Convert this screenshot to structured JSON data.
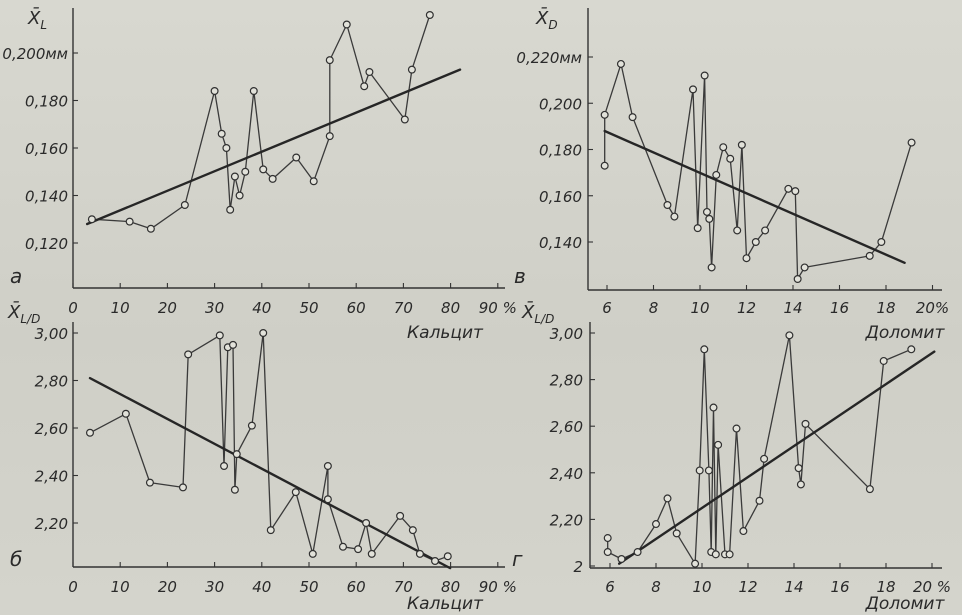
{
  "chart_data": [
    {
      "panel_label": "а",
      "type": "line",
      "xlabel": "Кальцит",
      "ylabel": {
        "symbol": "X̄",
        "subscript": "L"
      },
      "xlim": [
        0,
        90
      ],
      "ylim": [
        0.11,
        0.22
      ],
      "grid": false,
      "x_ticks": [
        {
          "value": 0,
          "label": "0"
        },
        {
          "value": 10,
          "label": "10"
        },
        {
          "value": 20,
          "label": "20"
        },
        {
          "value": 30,
          "label": "30"
        },
        {
          "value": 40,
          "label": "40"
        },
        {
          "value": 50,
          "label": "50"
        },
        {
          "value": 60,
          "label": "60"
        },
        {
          "value": 70,
          "label": "70"
        },
        {
          "value": 80,
          "label": "80"
        },
        {
          "value": 90,
          "label": "90 %"
        }
      ],
      "y_ticks": [
        {
          "value": 0.12,
          "label": "0,120"
        },
        {
          "value": 0.14,
          "label": "0,140"
        },
        {
          "value": 0.16,
          "label": "0,160"
        },
        {
          "value": 0.18,
          "label": "0,180"
        },
        {
          "value": 0.2,
          "label": "0,200мм"
        }
      ],
      "points": [
        [
          4,
          0.13
        ],
        [
          12,
          0.129
        ],
        [
          16.5,
          0.126
        ],
        [
          23.7,
          0.136
        ],
        [
          30,
          0.184
        ],
        [
          31.5,
          0.166
        ],
        [
          32.5,
          0.16
        ],
        [
          33.3,
          0.134
        ],
        [
          34.3,
          0.148
        ],
        [
          35.3,
          0.14
        ],
        [
          36.5,
          0.15
        ],
        [
          38.3,
          0.184
        ],
        [
          40.3,
          0.151
        ],
        [
          42.3,
          0.147
        ],
        [
          47.3,
          0.156
        ],
        [
          51,
          0.146
        ],
        [
          54.4,
          0.165
        ],
        [
          54.4,
          0.197
        ],
        [
          58,
          0.212
        ],
        [
          61.7,
          0.186
        ],
        [
          62.8,
          0.192
        ],
        [
          70.3,
          0.172
        ],
        [
          71.8,
          0.193
        ],
        [
          75.6,
          0.216
        ]
      ],
      "trend_line": [
        [
          3,
          0.128
        ],
        [
          82,
          0.193
        ]
      ]
    },
    {
      "panel_label": "в",
      "type": "line",
      "xlabel": "Доломит",
      "ylabel": {
        "symbol": "X̄",
        "subscript": "D"
      },
      "xlim": [
        5.5,
        20
      ],
      "ylim": [
        0.115,
        0.225
      ],
      "grid": false,
      "x_ticks": [
        {
          "value": 6,
          "label": "6"
        },
        {
          "value": 8,
          "label": "8"
        },
        {
          "value": 10,
          "label": "10"
        },
        {
          "value": 12,
          "label": "12"
        },
        {
          "value": 14,
          "label": "14"
        },
        {
          "value": 16,
          "label": "16"
        },
        {
          "value": 18,
          "label": "18"
        },
        {
          "value": 20,
          "label": "20%"
        }
      ],
      "y_ticks": [
        {
          "value": 0.14,
          "label": "0,140"
        },
        {
          "value": 0.16,
          "label": "0,160"
        },
        {
          "value": 0.18,
          "label": "0,180"
        },
        {
          "value": 0.2,
          "label": "0,200"
        },
        {
          "value": 0.22,
          "label": "0,220мм"
        }
      ],
      "points": [
        [
          5.9,
          0.173
        ],
        [
          5.9,
          0.195
        ],
        [
          6.6,
          0.217
        ],
        [
          7.1,
          0.194
        ],
        [
          8.6,
          0.156
        ],
        [
          8.9,
          0.151
        ],
        [
          9.7,
          0.206
        ],
        [
          9.9,
          0.146
        ],
        [
          10.2,
          0.212
        ],
        [
          10.3,
          0.153
        ],
        [
          10.4,
          0.15
        ],
        [
          10.5,
          0.129
        ],
        [
          10.7,
          0.169
        ],
        [
          11.0,
          0.181
        ],
        [
          11.3,
          0.176
        ],
        [
          11.6,
          0.145
        ],
        [
          11.8,
          0.182
        ],
        [
          12.0,
          0.133
        ],
        [
          12.4,
          0.14
        ],
        [
          12.8,
          0.145
        ],
        [
          13.8,
          0.163
        ],
        [
          14.1,
          0.162
        ],
        [
          14.2,
          0.124
        ],
        [
          14.5,
          0.129
        ],
        [
          17.3,
          0.134
        ],
        [
          17.8,
          0.14
        ],
        [
          19.1,
          0.183
        ]
      ],
      "trend_line": [
        [
          5.9,
          0.188
        ],
        [
          18.8,
          0.131
        ]
      ]
    },
    {
      "panel_label": "б",
      "type": "line",
      "xlabel": "Кальцит",
      "ylabel": {
        "symbol": "X̄",
        "subscript": "L/D"
      },
      "xlim": [
        0,
        90
      ],
      "ylim": [
        2.0,
        3.05
      ],
      "grid": false,
      "x_ticks": [
        {
          "value": 0,
          "label": "0"
        },
        {
          "value": 10,
          "label": "10"
        },
        {
          "value": 20,
          "label": "20"
        },
        {
          "value": 30,
          "label": "30"
        },
        {
          "value": 40,
          "label": "40"
        },
        {
          "value": 50,
          "label": "50"
        },
        {
          "value": 60,
          "label": "60"
        },
        {
          "value": 70,
          "label": "70"
        },
        {
          "value": 80,
          "label": "80"
        },
        {
          "value": 90,
          "label": "90 %"
        }
      ],
      "y_ticks": [
        {
          "value": 2.2,
          "label": "2,20"
        },
        {
          "value": 2.4,
          "label": "2,40"
        },
        {
          "value": 2.6,
          "label": "2,60"
        },
        {
          "value": 2.8,
          "label": "2,80"
        },
        {
          "value": 3.0,
          "label": "3,00"
        }
      ],
      "points": [
        [
          3.6,
          2.58
        ],
        [
          11.2,
          2.66
        ],
        [
          16.3,
          2.37
        ],
        [
          23.3,
          2.35
        ],
        [
          24.4,
          2.91
        ],
        [
          31.1,
          2.99
        ],
        [
          32.0,
          2.44
        ],
        [
          32.8,
          2.94
        ],
        [
          33.9,
          2.95
        ],
        [
          34.3,
          2.34
        ],
        [
          34.7,
          2.49
        ],
        [
          37.9,
          2.61
        ],
        [
          40.3,
          3.0
        ],
        [
          41.9,
          2.17
        ],
        [
          47.2,
          2.33
        ],
        [
          50.8,
          2.07
        ],
        [
          54.0,
          2.44
        ],
        [
          54.0,
          2.3
        ],
        [
          57.2,
          2.1
        ],
        [
          60.4,
          2.09
        ],
        [
          62.1,
          2.2
        ],
        [
          63.3,
          2.07
        ],
        [
          69.3,
          2.23
        ],
        [
          72.0,
          2.17
        ],
        [
          73.5,
          2.07
        ],
        [
          76.7,
          2.04
        ],
        [
          79.4,
          2.06
        ]
      ],
      "trend_line": [
        [
          3.6,
          2.81
        ],
        [
          79.9,
          2.01
        ]
      ]
    },
    {
      "panel_label": "г",
      "type": "line",
      "xlabel": "Доломит",
      "ylabel": {
        "symbol": "X̄",
        "subscript": "L/D"
      },
      "xlim": [
        5.5,
        20
      ],
      "ylim": [
        2.0,
        3.05
      ],
      "grid": false,
      "x_ticks": [
        {
          "value": 6,
          "label": "6"
        },
        {
          "value": 8,
          "label": "8"
        },
        {
          "value": 10,
          "label": "10"
        },
        {
          "value": 12,
          "label": "12"
        },
        {
          "value": 14,
          "label": "14"
        },
        {
          "value": 16,
          "label": "16"
        },
        {
          "value": 18,
          "label": "18"
        },
        {
          "value": 20,
          "label": "20 %"
        }
      ],
      "y_ticks": [
        {
          "value": 2.0,
          "label": "2"
        },
        {
          "value": 2.2,
          "label": "2,20"
        },
        {
          "value": 2.4,
          "label": "2,40"
        },
        {
          "value": 2.6,
          "label": "2,60"
        },
        {
          "value": 2.8,
          "label": "2,80"
        },
        {
          "value": 3.0,
          "label": "3,00"
        }
      ],
      "points": [
        [
          5.9,
          2.12
        ],
        [
          5.9,
          2.06
        ],
        [
          6.5,
          2.03
        ],
        [
          7.2,
          2.06
        ],
        [
          8.0,
          2.18
        ],
        [
          8.5,
          2.29
        ],
        [
          8.9,
          2.14
        ],
        [
          9.7,
          2.01
        ],
        [
          9.9,
          2.41
        ],
        [
          10.1,
          2.93
        ],
        [
          10.3,
          2.41
        ],
        [
          10.4,
          2.06
        ],
        [
          10.5,
          2.68
        ],
        [
          10.6,
          2.05
        ],
        [
          10.7,
          2.52
        ],
        [
          11.0,
          2.05
        ],
        [
          11.2,
          2.05
        ],
        [
          11.5,
          2.59
        ],
        [
          11.8,
          2.15
        ],
        [
          12.5,
          2.28
        ],
        [
          12.7,
          2.46
        ],
        [
          13.8,
          2.99
        ],
        [
          14.2,
          2.42
        ],
        [
          14.3,
          2.35
        ],
        [
          14.5,
          2.61
        ],
        [
          17.3,
          2.33
        ],
        [
          17.9,
          2.88
        ],
        [
          19.1,
          2.93
        ]
      ],
      "trend_line": [
        [
          6.4,
          2.01
        ],
        [
          20.1,
          2.92
        ]
      ]
    }
  ]
}
